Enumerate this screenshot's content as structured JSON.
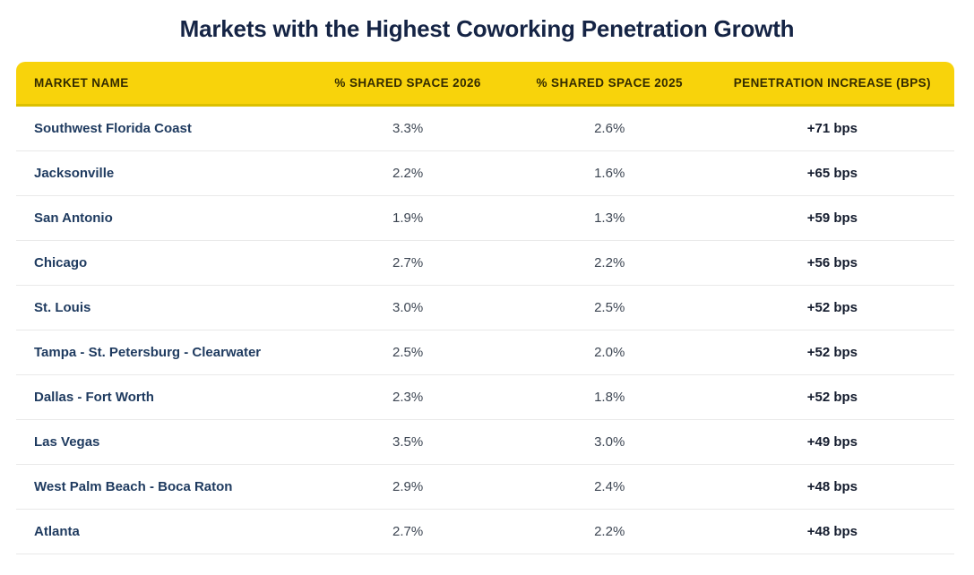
{
  "title": "Markets with the Highest Coworking Penetration Growth",
  "colors": {
    "header_bg": "#F8D30B",
    "header_bottom_border": "#DCC000",
    "header_text": "#332B00",
    "title_text": "#152445",
    "market_text": "#1E3A5F",
    "value_text": "#3D4653",
    "increase_text": "#141C2E",
    "row_divider": "#E9E9E9"
  },
  "chart_data": {
    "type": "table",
    "title": "Markets with the Highest Coworking Penetration Growth",
    "columns": [
      "MARKET NAME",
      "% SHARED SPACE 2026",
      "% SHARED SPACE 2025",
      "PENETRATION INCREASE (BPS)"
    ],
    "rows": [
      [
        "Southwest Florida Coast",
        "3.3%",
        "2.6%",
        "+71 bps"
      ],
      [
        "Jacksonville",
        "2.2%",
        "1.6%",
        "+65 bps"
      ],
      [
        "San Antonio",
        "1.9%",
        "1.3%",
        "+59 bps"
      ],
      [
        "Chicago",
        "2.7%",
        "2.2%",
        "+56 bps"
      ],
      [
        "St. Louis",
        "3.0%",
        "2.5%",
        "+52 bps"
      ],
      [
        "Tampa - St. Petersburg - Clearwater",
        "2.5%",
        "2.0%",
        "+52 bps"
      ],
      [
        "Dallas - Fort Worth",
        "2.3%",
        "1.8%",
        "+52 bps"
      ],
      [
        "Las Vegas",
        "3.5%",
        "3.0%",
        "+49 bps"
      ],
      [
        "West Palm Beach - Boca Raton",
        "2.9%",
        "2.4%",
        "+48 bps"
      ],
      [
        "Atlanta",
        "2.7%",
        "2.2%",
        "+48 bps"
      ]
    ]
  }
}
